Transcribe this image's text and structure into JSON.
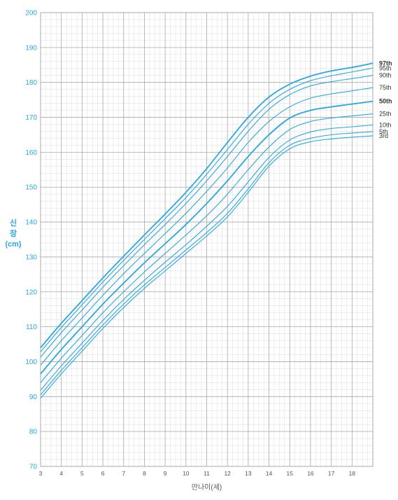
{
  "chart_data": {
    "type": "line",
    "title": "",
    "ylabel_lines": [
      "신",
      "장",
      "(cm)"
    ],
    "xlabel": "만나이(세)",
    "xlim": [
      3,
      19
    ],
    "ylim": [
      70,
      200
    ],
    "x_ticks": [
      3,
      4,
      5,
      6,
      7,
      8,
      9,
      10,
      11,
      12,
      13,
      14,
      15,
      16,
      17,
      18
    ],
    "y_ticks": [
      70,
      80,
      90,
      100,
      110,
      120,
      130,
      140,
      150,
      160,
      170,
      180,
      190,
      200
    ],
    "grid": true,
    "line_color": "#29a8e0",
    "grid_major_color": "#a8a8a8",
    "grid_minor_color": "#dcdcdc",
    "x": [
      3,
      4,
      5,
      6,
      7,
      8,
      9,
      10,
      11,
      12,
      13,
      14,
      15,
      16,
      17,
      18,
      19
    ],
    "series": [
      {
        "name": "3rd",
        "bold": false,
        "values": [
          89.5,
          96.5,
          103.0,
          109.5,
          115.5,
          121.0,
          126.0,
          131.0,
          136.0,
          141.5,
          148.5,
          156.0,
          161.0,
          163.0,
          163.8,
          164.3,
          164.7
        ]
      },
      {
        "name": "5th",
        "bold": false,
        "values": [
          90.5,
          97.5,
          104.0,
          110.5,
          116.5,
          122.0,
          127.0,
          132.0,
          137.0,
          142.5,
          149.5,
          157.0,
          162.0,
          164.0,
          165.0,
          165.5,
          165.9
        ]
      },
      {
        "name": "10th",
        "bold": false,
        "values": [
          91.8,
          98.8,
          105.3,
          111.8,
          117.8,
          123.3,
          128.5,
          133.5,
          138.8,
          144.5,
          151.5,
          158.5,
          163.5,
          165.8,
          166.8,
          167.3,
          167.8
        ]
      },
      {
        "name": "25th",
        "bold": false,
        "values": [
          94.0,
          101.0,
          107.5,
          114.0,
          120.0,
          125.7,
          131.0,
          136.3,
          141.8,
          148.0,
          155.0,
          161.5,
          166.5,
          168.8,
          169.8,
          170.4,
          171.0
        ]
      },
      {
        "name": "50th",
        "bold": true,
        "values": [
          96.5,
          103.5,
          110.0,
          116.5,
          122.5,
          128.3,
          133.8,
          139.3,
          145.3,
          151.8,
          158.8,
          165.0,
          169.8,
          172.0,
          173.0,
          173.8,
          174.6
        ]
      },
      {
        "name": "75th",
        "bold": false,
        "values": [
          99.0,
          106.0,
          112.5,
          119.0,
          125.2,
          131.0,
          136.7,
          142.5,
          148.8,
          155.5,
          162.8,
          168.8,
          173.0,
          175.5,
          176.7,
          177.6,
          178.5
        ]
      },
      {
        "name": "90th",
        "bold": false,
        "values": [
          101.3,
          108.3,
          114.8,
          121.3,
          127.5,
          133.5,
          139.3,
          145.3,
          151.8,
          158.8,
          166.0,
          172.3,
          176.5,
          179.0,
          180.2,
          181.1,
          182.0
        ]
      },
      {
        "name": "95th",
        "bold": false,
        "values": [
          102.8,
          109.8,
          116.3,
          122.8,
          129.0,
          135.0,
          141.0,
          147.0,
          153.7,
          160.8,
          168.0,
          174.0,
          178.0,
          180.5,
          181.9,
          183.0,
          184.1
        ]
      },
      {
        "name": "97th",
        "bold": true,
        "values": [
          104.0,
          111.0,
          117.5,
          124.0,
          130.2,
          136.3,
          142.3,
          148.5,
          155.3,
          162.8,
          170.0,
          175.8,
          179.5,
          181.8,
          183.3,
          184.3,
          185.5
        ]
      }
    ]
  }
}
